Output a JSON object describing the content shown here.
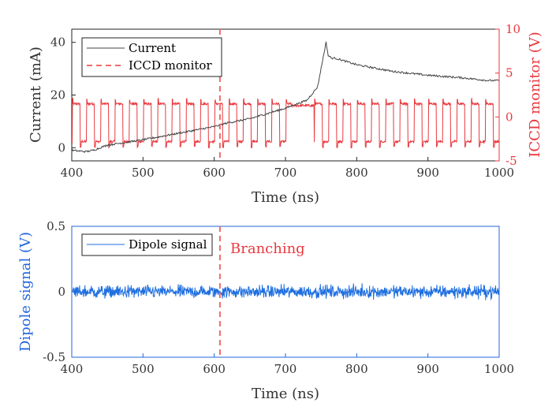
{
  "chart_data": [
    {
      "type": "line",
      "xlabel": "Time (ns)",
      "ylabel_left": "Current (mA)",
      "ylabel_right": "ICCD monitor (V)",
      "xlim": [
        400,
        1000
      ],
      "ylim_left": [
        -5,
        45
      ],
      "ylim_right": [
        -5,
        10
      ],
      "xticks": [
        "400",
        "500",
        "600",
        "700",
        "800",
        "900",
        "1000"
      ],
      "yticks_left": [
        "0",
        "20",
        "40"
      ],
      "yticks_right": [
        "-5",
        "0",
        "5",
        "10"
      ],
      "legend": [
        "Current",
        "ICCD monitor"
      ],
      "colors": {
        "current": "#444444",
        "iccd": "#e8393f",
        "marker": "#f06a6a",
        "right_axis": "#e8393f"
      },
      "marker_x": 608,
      "series": [
        {
          "name": "Current",
          "x": [
            400,
            420,
            430,
            450,
            500,
            550,
            600,
            620,
            650,
            700,
            730,
            745,
            752,
            757,
            760,
            765,
            770,
            800,
            850,
            900,
            950,
            985,
            1000
          ],
          "y": [
            -1,
            -1.5,
            -1,
            1,
            3,
            5.5,
            8,
            9.5,
            11,
            15,
            18,
            23,
            33,
            40,
            35,
            34,
            34,
            31.5,
            29,
            27.5,
            26.5,
            25.5,
            25.5
          ]
        },
        {
          "name": "ICCD monitor",
          "pulse_period": 20,
          "pulse_start": 401,
          "pulse_on_fraction": 0.55,
          "high": 1.5,
          "low": -2.8,
          "gate_window": [
            708,
            740
          ]
        }
      ]
    },
    {
      "type": "line",
      "xlabel": "Time (ns)",
      "ylabel": "Dipole signal (V)",
      "xlim": [
        400,
        1000
      ],
      "ylim": [
        -0.5,
        0.5
      ],
      "xticks": [
        "400",
        "500",
        "600",
        "700",
        "800",
        "900",
        "1000"
      ],
      "yticks": [
        "-0.5",
        "0",
        "0.5"
      ],
      "legend": [
        "Dipole signal"
      ],
      "annotation": "Branching",
      "colors": {
        "dipole": "#1f6fe0",
        "axis": "#2266dd",
        "marker": "#f06a6a"
      },
      "marker_x": 608,
      "series": [
        {
          "name": "Dipole signal",
          "mean": 0.0,
          "noise_amplitude": 0.04,
          "x_range": [
            400,
            1000
          ]
        }
      ]
    }
  ]
}
